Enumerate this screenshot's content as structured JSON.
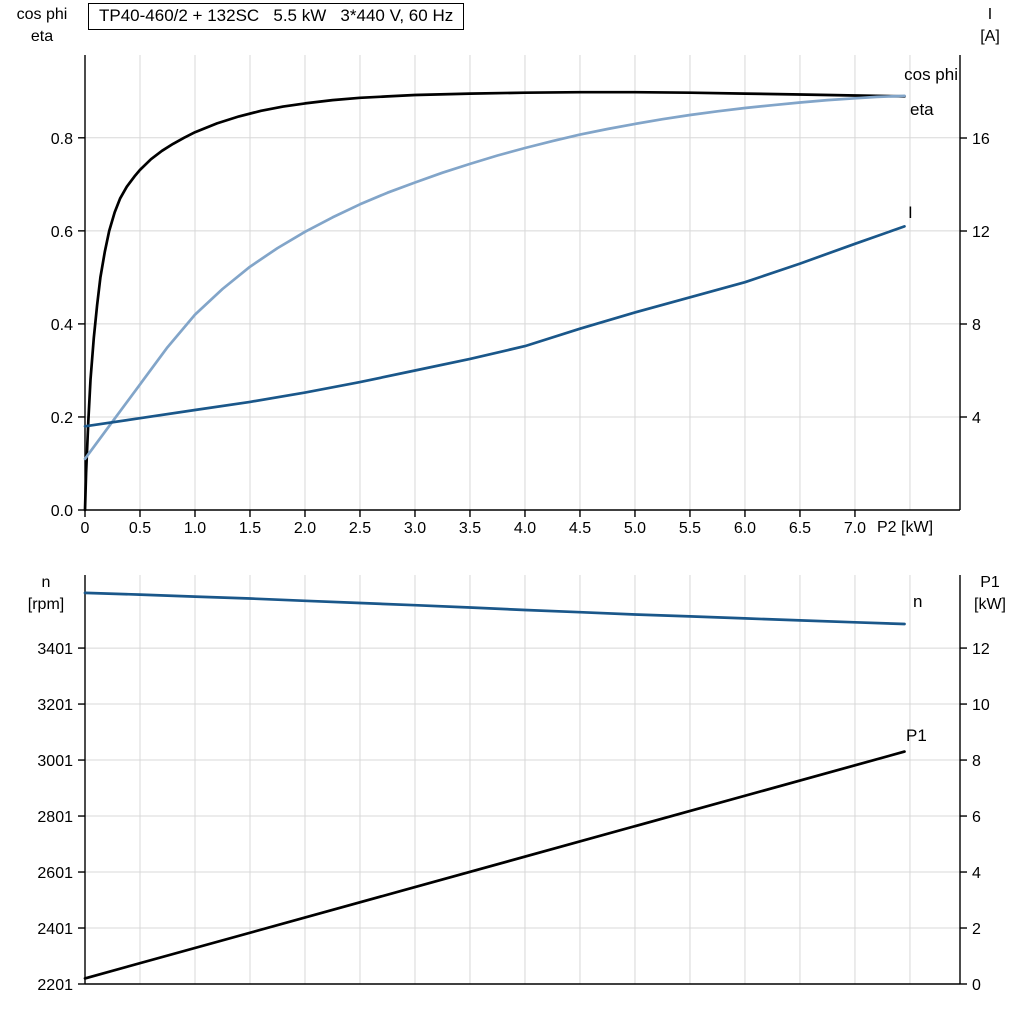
{
  "title_box": {
    "text": "TP40-460/2 + 132SC   5.5 kW   3*440 V, 60 Hz"
  },
  "colors": {
    "black": "#000000",
    "light_blue": "#82a5c9",
    "dark_blue": "#1a578a",
    "grid": "#d8d8d8",
    "axis": "#000000"
  },
  "chart_data": [
    {
      "type": "line",
      "title": "TP40-460/2 + 132SC   5.5 kW   3*440 V, 60 Hz",
      "x_axis": {
        "label": "P2 [kW]",
        "min": 0,
        "max": 7.955,
        "ticks": [
          {
            "v": 0,
            "label": "0"
          },
          {
            "v": 0.5,
            "label": "0.5"
          },
          {
            "v": 1,
            "label": "1.0"
          },
          {
            "v": 1.5,
            "label": "1.5"
          },
          {
            "v": 2,
            "label": "2.0"
          },
          {
            "v": 2.5,
            "label": "2.5"
          },
          {
            "v": 3,
            "label": "3.0"
          },
          {
            "v": 3.5,
            "label": "3.5"
          },
          {
            "v": 4,
            "label": "4.0"
          },
          {
            "v": 4.5,
            "label": "4.5"
          },
          {
            "v": 5,
            "label": "5.0"
          },
          {
            "v": 5.5,
            "label": "5.5"
          },
          {
            "v": 6,
            "label": "6.0"
          },
          {
            "v": 6.5,
            "label": "6.5"
          },
          {
            "v": 7,
            "label": "7.0"
          }
        ],
        "grid": [
          0.5,
          1,
          1.5,
          2,
          2.5,
          3,
          3.5,
          4,
          4.5,
          5,
          5.5,
          6,
          6.5,
          7,
          7.5
        ]
      },
      "y_left": {
        "label_lines": [
          "cos phi",
          "eta"
        ],
        "min": 0,
        "max": 0.978,
        "ticks": [
          {
            "v": 0,
            "label": "0.0"
          },
          {
            "v": 0.2,
            "label": "0.2"
          },
          {
            "v": 0.4,
            "label": "0.4"
          },
          {
            "v": 0.6,
            "label": "0.6"
          },
          {
            "v": 0.8,
            "label": "0.8"
          }
        ],
        "grid": [
          0.2,
          0.4,
          0.6,
          0.8
        ]
      },
      "y_right": {
        "label_lines": [
          "I",
          "[A]"
        ],
        "min": 0,
        "max": 19.57,
        "ticks": [
          {
            "v": 4,
            "label": "4"
          },
          {
            "v": 8,
            "label": "8"
          },
          {
            "v": 12,
            "label": "12"
          },
          {
            "v": 16,
            "label": "16"
          }
        ]
      },
      "series": [
        {
          "name": "eta",
          "axis": "left",
          "color": "#000000",
          "points": [
            [
              0,
              0
            ],
            [
              0.01,
              0.08
            ],
            [
              0.03,
              0.19
            ],
            [
              0.05,
              0.28
            ],
            [
              0.08,
              0.37
            ],
            [
              0.11,
              0.44
            ],
            [
              0.14,
              0.5
            ],
            [
              0.18,
              0.555
            ],
            [
              0.22,
              0.6
            ],
            [
              0.27,
              0.64
            ],
            [
              0.32,
              0.67
            ],
            [
              0.38,
              0.695
            ],
            [
              0.45,
              0.717
            ],
            [
              0.5,
              0.731
            ],
            [
              0.6,
              0.754
            ],
            [
              0.7,
              0.772
            ],
            [
              0.8,
              0.787
            ],
            [
              0.9,
              0.8
            ],
            [
              1.0,
              0.812
            ],
            [
              1.2,
              0.831
            ],
            [
              1.4,
              0.846
            ],
            [
              1.6,
              0.858
            ],
            [
              1.8,
              0.867
            ],
            [
              2.0,
              0.874
            ],
            [
              2.25,
              0.881
            ],
            [
              2.5,
              0.886
            ],
            [
              2.75,
              0.889
            ],
            [
              3.0,
              0.892
            ],
            [
              3.5,
              0.895
            ],
            [
              4.0,
              0.897
            ],
            [
              4.5,
              0.898
            ],
            [
              5.0,
              0.898
            ],
            [
              5.5,
              0.897
            ],
            [
              6.0,
              0.895
            ],
            [
              6.5,
              0.893
            ],
            [
              7.0,
              0.891
            ],
            [
              7.45,
              0.889
            ]
          ]
        },
        {
          "name": "cos phi",
          "axis": "left",
          "color": "#82a5c9",
          "points": [
            [
              0,
              0.11
            ],
            [
              0.25,
              0.19
            ],
            [
              0.5,
              0.27
            ],
            [
              0.75,
              0.35
            ],
            [
              1.0,
              0.42
            ],
            [
              1.25,
              0.475
            ],
            [
              1.5,
              0.523
            ],
            [
              1.75,
              0.563
            ],
            [
              2.0,
              0.598
            ],
            [
              2.25,
              0.629
            ],
            [
              2.5,
              0.657
            ],
            [
              2.75,
              0.682
            ],
            [
              3.0,
              0.704
            ],
            [
              3.25,
              0.725
            ],
            [
              3.5,
              0.744
            ],
            [
              3.75,
              0.762
            ],
            [
              4.0,
              0.778
            ],
            [
              4.25,
              0.793
            ],
            [
              4.5,
              0.807
            ],
            [
              4.75,
              0.819
            ],
            [
              5.0,
              0.83
            ],
            [
              5.25,
              0.84
            ],
            [
              5.5,
              0.849
            ],
            [
              5.75,
              0.857
            ],
            [
              6.0,
              0.864
            ],
            [
              6.25,
              0.87
            ],
            [
              6.5,
              0.876
            ],
            [
              6.75,
              0.881
            ],
            [
              7.0,
              0.885
            ],
            [
              7.2,
              0.888
            ],
            [
              7.45,
              0.89
            ]
          ]
        },
        {
          "name": "I",
          "axis": "right",
          "color": "#1a578a",
          "points": [
            [
              0,
              3.6
            ],
            [
              0.5,
              3.95
            ],
            [
              1.0,
              4.3
            ],
            [
              1.5,
              4.65
            ],
            [
              2.0,
              5.05
            ],
            [
              2.5,
              5.5
            ],
            [
              3.0,
              6.0
            ],
            [
              3.5,
              6.5
            ],
            [
              4.0,
              7.05
            ],
            [
              4.5,
              7.8
            ],
            [
              5.0,
              8.5
            ],
            [
              5.5,
              9.15
            ],
            [
              6.0,
              9.8
            ],
            [
              6.5,
              10.6
            ],
            [
              7.0,
              11.45
            ],
            [
              7.45,
              12.2
            ]
          ]
        }
      ]
    },
    {
      "type": "line",
      "title": "",
      "x_axis": {
        "label": "",
        "min": 0,
        "max": 7.955,
        "ticks": [],
        "grid": [
          0.5,
          1,
          1.5,
          2,
          2.5,
          3,
          3.5,
          4,
          4.5,
          5,
          5.5,
          6,
          6.5,
          7,
          7.5
        ]
      },
      "y_left": {
        "label_lines": [
          "n",
          "[rpm]"
        ],
        "min": 2201,
        "max": 3662,
        "ticks": [
          {
            "v": 2201,
            "label": "2201"
          },
          {
            "v": 2401,
            "label": "2401"
          },
          {
            "v": 2601,
            "label": "2601"
          },
          {
            "v": 2801,
            "label": "2801"
          },
          {
            "v": 3001,
            "label": "3001"
          },
          {
            "v": 3201,
            "label": "3201"
          },
          {
            "v": 3401,
            "label": "3401"
          }
        ],
        "grid": [
          2401,
          2601,
          2801,
          3001,
          3201,
          3401
        ]
      },
      "y_right": {
        "label_lines": [
          "P1",
          "[kW]"
        ],
        "min": 0,
        "max": 14.61,
        "ticks": [
          {
            "v": 0,
            "label": "0"
          },
          {
            "v": 2,
            "label": "2"
          },
          {
            "v": 4,
            "label": "4"
          },
          {
            "v": 6,
            "label": "6"
          },
          {
            "v": 8,
            "label": "8"
          },
          {
            "v": 10,
            "label": "10"
          },
          {
            "v": 12,
            "label": "12"
          }
        ]
      },
      "series": [
        {
          "name": "P1",
          "axis": "right",
          "color": "#000000",
          "points": [
            [
              0,
              0.2
            ],
            [
              7.45,
              8.3
            ]
          ]
        },
        {
          "name": "n",
          "axis": "left",
          "color": "#1a578a",
          "points": [
            [
              0,
              3598
            ],
            [
              0.5,
              3592
            ],
            [
              1.0,
              3585
            ],
            [
              1.5,
              3578
            ],
            [
              2.0,
              3570
            ],
            [
              2.5,
              3562
            ],
            [
              3.0,
              3554
            ],
            [
              3.5,
              3546
            ],
            [
              4.0,
              3537
            ],
            [
              4.5,
              3529
            ],
            [
              5.0,
              3521
            ],
            [
              5.5,
              3514
            ],
            [
              6.0,
              3507
            ],
            [
              6.5,
              3500
            ],
            [
              7.0,
              3493
            ],
            [
              7.45,
              3487
            ]
          ]
        }
      ]
    }
  ]
}
